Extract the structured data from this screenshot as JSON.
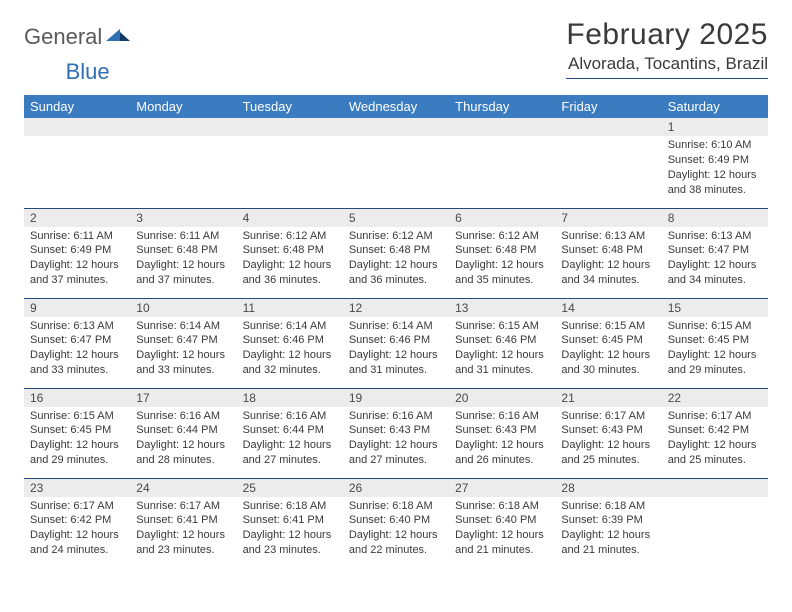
{
  "logo": {
    "word1": "General",
    "word2": "Blue"
  },
  "title": {
    "month": "February 2025",
    "location": "Alvorada, Tocantins, Brazil"
  },
  "colors": {
    "header_bg": "#3b7bbf",
    "header_text": "#ffffff",
    "daynum_bg": "#ececec",
    "rule": "#234a7a",
    "text": "#3a3a3a",
    "logo_gray": "#5a5a5a",
    "logo_blue": "#2f6fb3",
    "page_bg": "#ffffff"
  },
  "columns": [
    "Sunday",
    "Monday",
    "Tuesday",
    "Wednesday",
    "Thursday",
    "Friday",
    "Saturday"
  ],
  "weeks": [
    [
      {
        "day": ""
      },
      {
        "day": ""
      },
      {
        "day": ""
      },
      {
        "day": ""
      },
      {
        "day": ""
      },
      {
        "day": ""
      },
      {
        "day": "1",
        "sunrise": "Sunrise: 6:10 AM",
        "sunset": "Sunset: 6:49 PM",
        "daylight": "Daylight: 12 hours and 38 minutes."
      }
    ],
    [
      {
        "day": "2",
        "sunrise": "Sunrise: 6:11 AM",
        "sunset": "Sunset: 6:49 PM",
        "daylight": "Daylight: 12 hours and 37 minutes."
      },
      {
        "day": "3",
        "sunrise": "Sunrise: 6:11 AM",
        "sunset": "Sunset: 6:48 PM",
        "daylight": "Daylight: 12 hours and 37 minutes."
      },
      {
        "day": "4",
        "sunrise": "Sunrise: 6:12 AM",
        "sunset": "Sunset: 6:48 PM",
        "daylight": "Daylight: 12 hours and 36 minutes."
      },
      {
        "day": "5",
        "sunrise": "Sunrise: 6:12 AM",
        "sunset": "Sunset: 6:48 PM",
        "daylight": "Daylight: 12 hours and 36 minutes."
      },
      {
        "day": "6",
        "sunrise": "Sunrise: 6:12 AM",
        "sunset": "Sunset: 6:48 PM",
        "daylight": "Daylight: 12 hours and 35 minutes."
      },
      {
        "day": "7",
        "sunrise": "Sunrise: 6:13 AM",
        "sunset": "Sunset: 6:48 PM",
        "daylight": "Daylight: 12 hours and 34 minutes."
      },
      {
        "day": "8",
        "sunrise": "Sunrise: 6:13 AM",
        "sunset": "Sunset: 6:47 PM",
        "daylight": "Daylight: 12 hours and 34 minutes."
      }
    ],
    [
      {
        "day": "9",
        "sunrise": "Sunrise: 6:13 AM",
        "sunset": "Sunset: 6:47 PM",
        "daylight": "Daylight: 12 hours and 33 minutes."
      },
      {
        "day": "10",
        "sunrise": "Sunrise: 6:14 AM",
        "sunset": "Sunset: 6:47 PM",
        "daylight": "Daylight: 12 hours and 33 minutes."
      },
      {
        "day": "11",
        "sunrise": "Sunrise: 6:14 AM",
        "sunset": "Sunset: 6:46 PM",
        "daylight": "Daylight: 12 hours and 32 minutes."
      },
      {
        "day": "12",
        "sunrise": "Sunrise: 6:14 AM",
        "sunset": "Sunset: 6:46 PM",
        "daylight": "Daylight: 12 hours and 31 minutes."
      },
      {
        "day": "13",
        "sunrise": "Sunrise: 6:15 AM",
        "sunset": "Sunset: 6:46 PM",
        "daylight": "Daylight: 12 hours and 31 minutes."
      },
      {
        "day": "14",
        "sunrise": "Sunrise: 6:15 AM",
        "sunset": "Sunset: 6:45 PM",
        "daylight": "Daylight: 12 hours and 30 minutes."
      },
      {
        "day": "15",
        "sunrise": "Sunrise: 6:15 AM",
        "sunset": "Sunset: 6:45 PM",
        "daylight": "Daylight: 12 hours and 29 minutes."
      }
    ],
    [
      {
        "day": "16",
        "sunrise": "Sunrise: 6:15 AM",
        "sunset": "Sunset: 6:45 PM",
        "daylight": "Daylight: 12 hours and 29 minutes."
      },
      {
        "day": "17",
        "sunrise": "Sunrise: 6:16 AM",
        "sunset": "Sunset: 6:44 PM",
        "daylight": "Daylight: 12 hours and 28 minutes."
      },
      {
        "day": "18",
        "sunrise": "Sunrise: 6:16 AM",
        "sunset": "Sunset: 6:44 PM",
        "daylight": "Daylight: 12 hours and 27 minutes."
      },
      {
        "day": "19",
        "sunrise": "Sunrise: 6:16 AM",
        "sunset": "Sunset: 6:43 PM",
        "daylight": "Daylight: 12 hours and 27 minutes."
      },
      {
        "day": "20",
        "sunrise": "Sunrise: 6:16 AM",
        "sunset": "Sunset: 6:43 PM",
        "daylight": "Daylight: 12 hours and 26 minutes."
      },
      {
        "day": "21",
        "sunrise": "Sunrise: 6:17 AM",
        "sunset": "Sunset: 6:43 PM",
        "daylight": "Daylight: 12 hours and 25 minutes."
      },
      {
        "day": "22",
        "sunrise": "Sunrise: 6:17 AM",
        "sunset": "Sunset: 6:42 PM",
        "daylight": "Daylight: 12 hours and 25 minutes."
      }
    ],
    [
      {
        "day": "23",
        "sunrise": "Sunrise: 6:17 AM",
        "sunset": "Sunset: 6:42 PM",
        "daylight": "Daylight: 12 hours and 24 minutes."
      },
      {
        "day": "24",
        "sunrise": "Sunrise: 6:17 AM",
        "sunset": "Sunset: 6:41 PM",
        "daylight": "Daylight: 12 hours and 23 minutes."
      },
      {
        "day": "25",
        "sunrise": "Sunrise: 6:18 AM",
        "sunset": "Sunset: 6:41 PM",
        "daylight": "Daylight: 12 hours and 23 minutes."
      },
      {
        "day": "26",
        "sunrise": "Sunrise: 6:18 AM",
        "sunset": "Sunset: 6:40 PM",
        "daylight": "Daylight: 12 hours and 22 minutes."
      },
      {
        "day": "27",
        "sunrise": "Sunrise: 6:18 AM",
        "sunset": "Sunset: 6:40 PM",
        "daylight": "Daylight: 12 hours and 21 minutes."
      },
      {
        "day": "28",
        "sunrise": "Sunrise: 6:18 AM",
        "sunset": "Sunset: 6:39 PM",
        "daylight": "Daylight: 12 hours and 21 minutes."
      },
      {
        "day": ""
      }
    ]
  ]
}
